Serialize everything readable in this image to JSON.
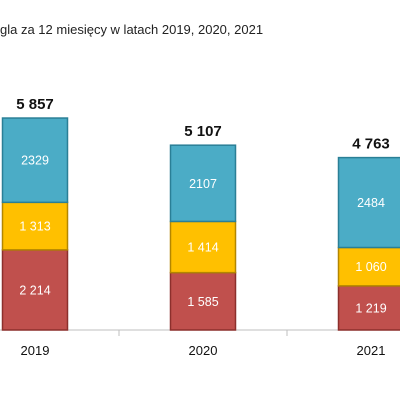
{
  "chart_data": {
    "type": "bar",
    "stacked": true,
    "title": "gla za  12 miesięcy w latach  2019, 2020, 2021",
    "categories": [
      "2019",
      "2020",
      "2021"
    ],
    "totals": [
      5857,
      5107,
      4763
    ],
    "total_labels": [
      "5 857",
      "5 107",
      "4 763"
    ],
    "series": [
      {
        "values": [
          2214,
          1585,
          1219
        ],
        "labels": [
          "2 214",
          "1 585",
          "1 219"
        ],
        "color": "#c0504d"
      },
      {
        "values": [
          1313,
          1414,
          1060
        ],
        "labels": [
          "1 313",
          "1 414",
          "1 060"
        ],
        "color": "#ffc000"
      },
      {
        "values": [
          2329,
          2107,
          2484
        ],
        "labels": [
          "2329",
          "2107",
          "2484"
        ],
        "color": "#4bacc6"
      }
    ],
    "ylim": [
      0,
      6500
    ],
    "grid": false,
    "legend": "none"
  }
}
